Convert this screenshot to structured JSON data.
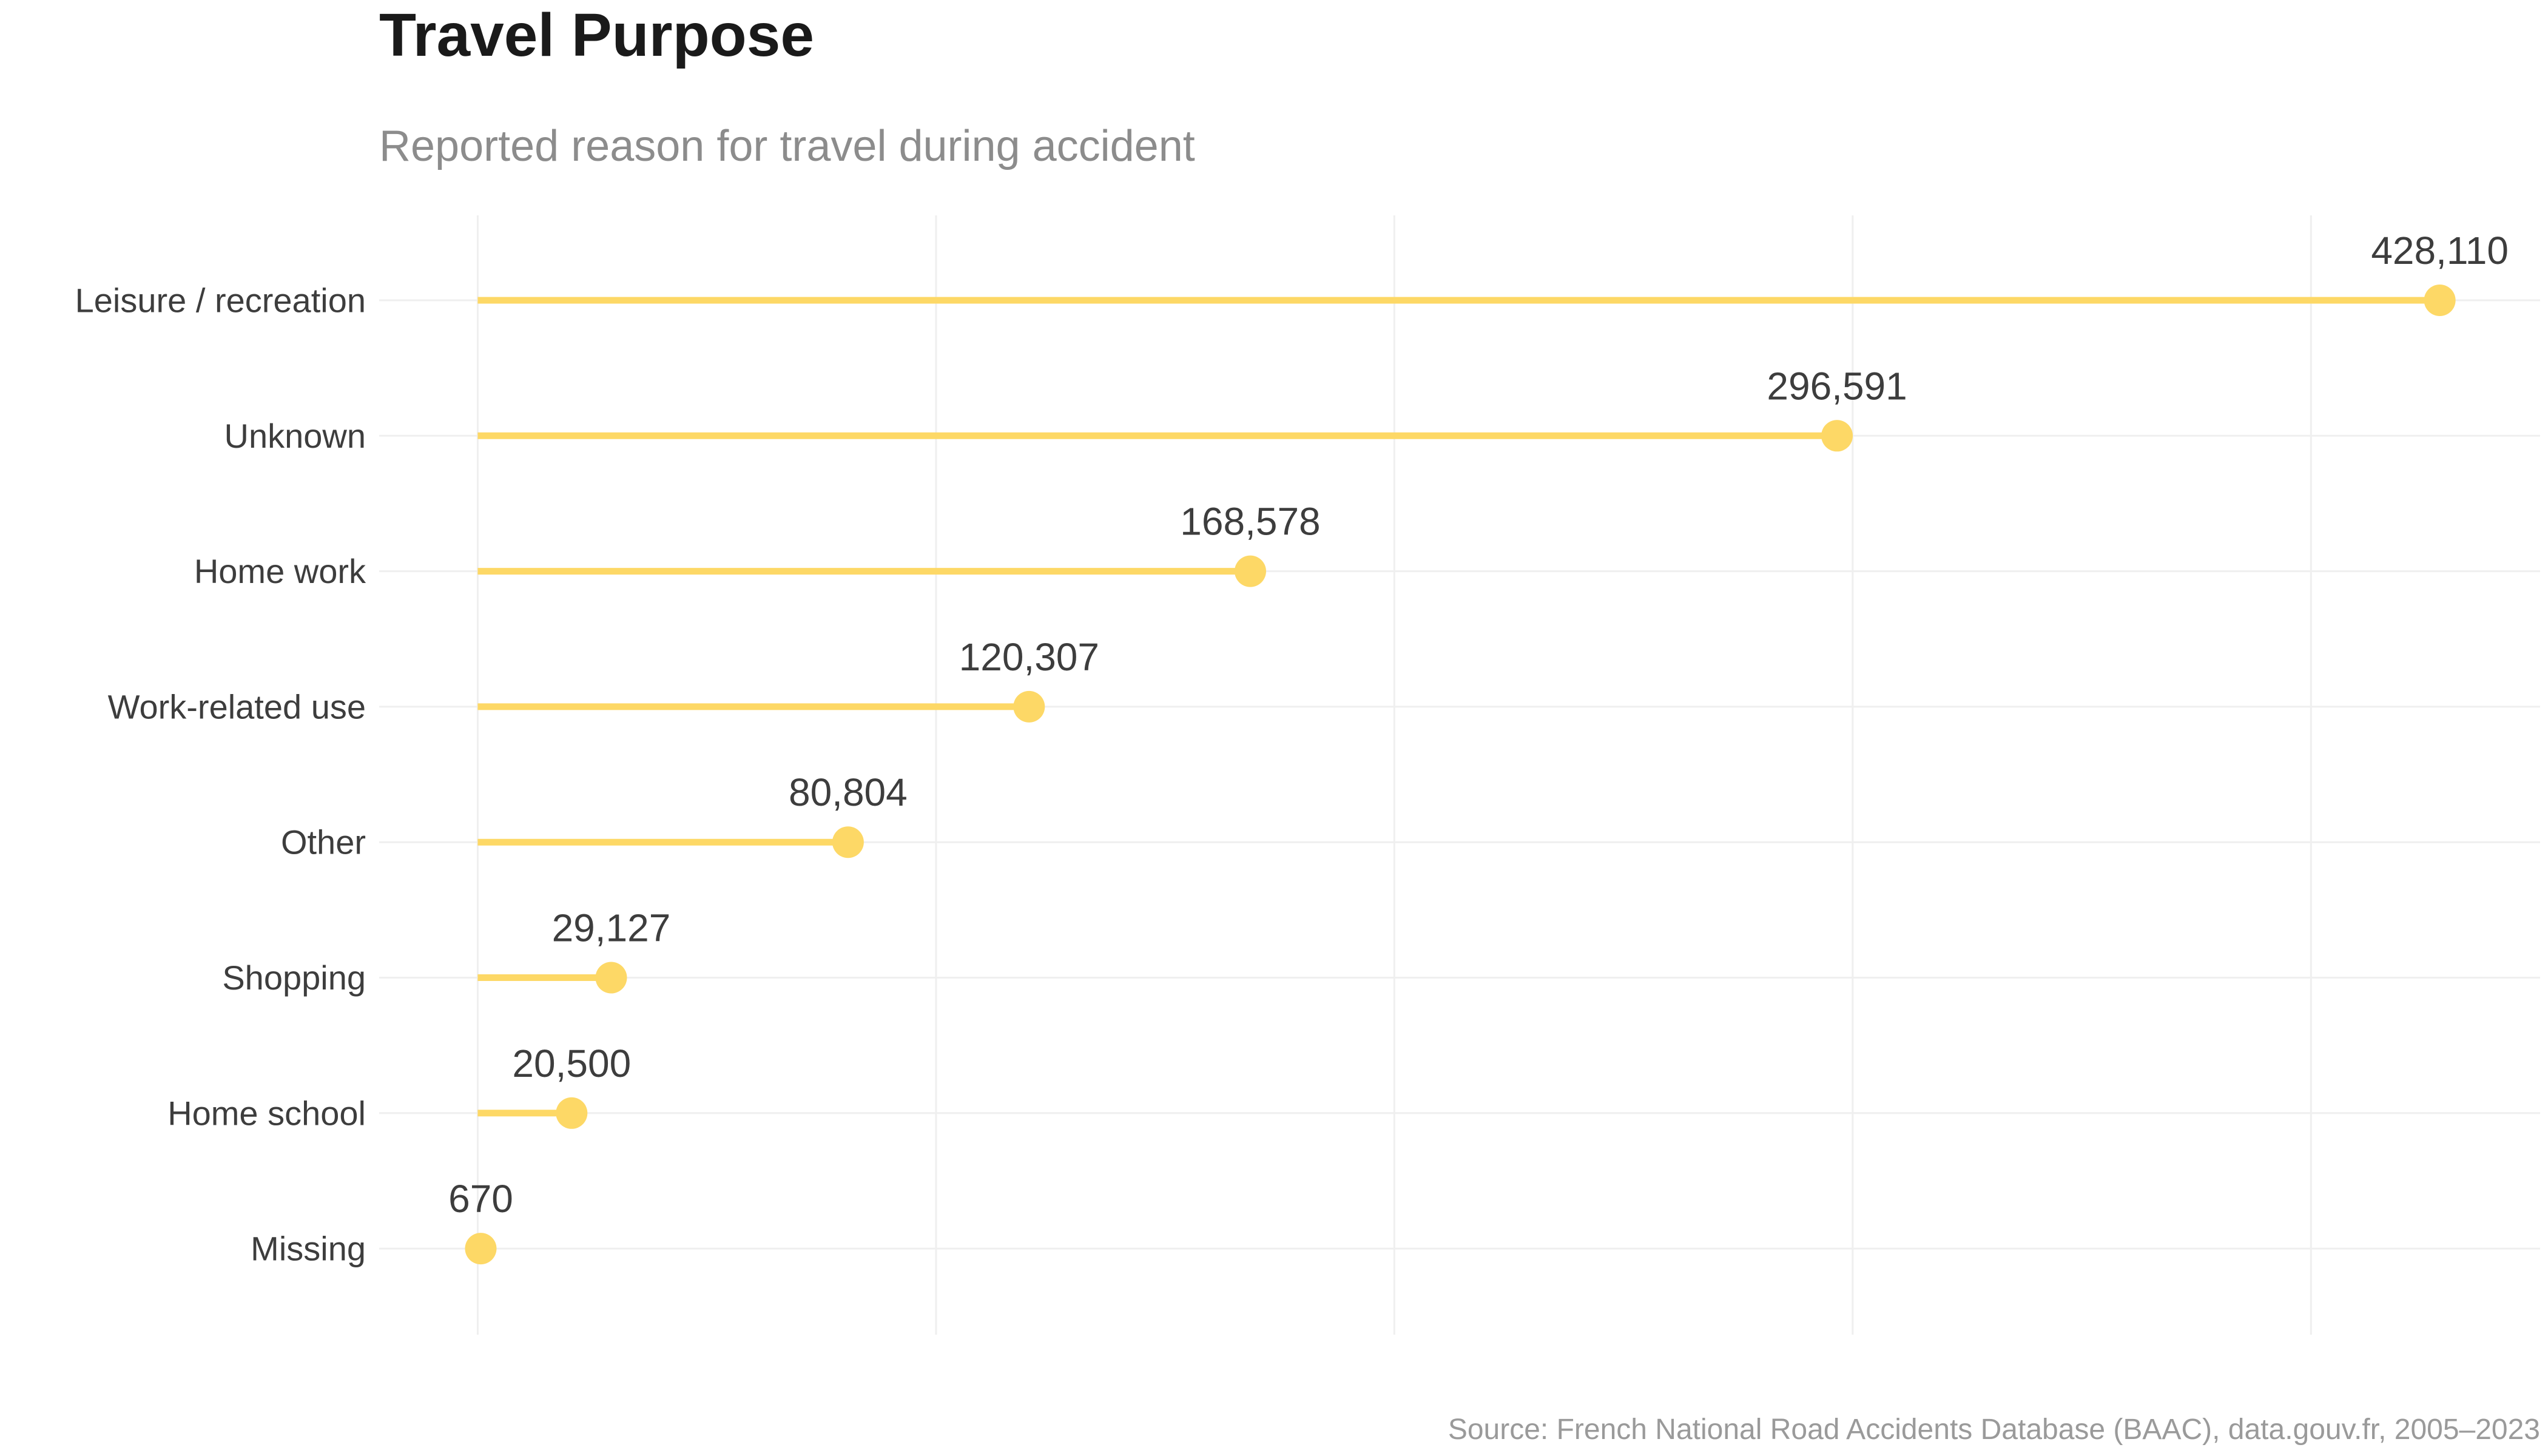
{
  "chart_data": {
    "type": "lollipop",
    "title": "Travel Purpose",
    "subtitle": "Reported reason for travel during accident",
    "caption": "Source: French National Road Accidents Database (BAAC), data.gouv.fr, 2005–2023",
    "orientation": "horizontal",
    "categories": [
      "Leisure / recreation",
      "Unknown",
      "Home  work",
      "Work-related use",
      "Other",
      "Shopping",
      "Home  school",
      "Missing"
    ],
    "values": [
      428110,
      296591,
      168578,
      120307,
      80804,
      29127,
      20500,
      670
    ],
    "value_labels": [
      "428,110",
      "296,591",
      "168,578",
      "120,307",
      "80,804",
      "29,127",
      "20,500",
      "670"
    ],
    "xlim": [
      -21500,
      450000
    ],
    "x_gridlines": [
      0,
      100000,
      200000,
      300000,
      400000
    ],
    "x_tick_labels_visible": false,
    "grid": true,
    "legend": "none",
    "colors": {
      "lollipop": "#fdd866",
      "grid": "#efefef",
      "title": "#1a1a1a",
      "subtitle": "#8c8c8c",
      "label": "#3d3d3d",
      "caption": "#9a9a9a"
    }
  }
}
